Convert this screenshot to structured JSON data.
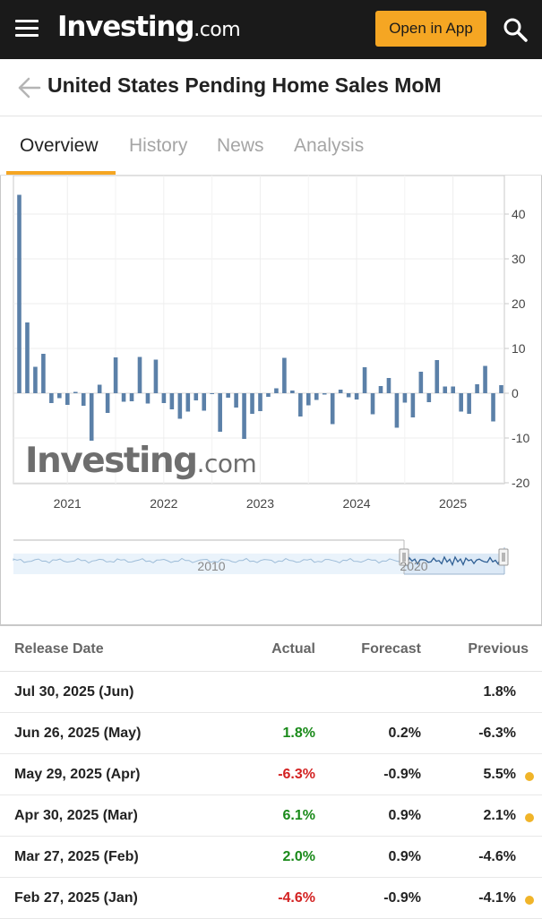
{
  "header": {
    "logo_main": "Investing",
    "logo_suffix": ".com",
    "open_app_label": "Open in App"
  },
  "page": {
    "title": "United States Pending Home Sales MoM"
  },
  "tabs": [
    {
      "label": "Overview",
      "active": true
    },
    {
      "label": "History",
      "active": false
    },
    {
      "label": "News",
      "active": false
    },
    {
      "label": "Analysis",
      "active": false
    }
  ],
  "chart_data": {
    "type": "bar",
    "watermark_main": "Investing",
    "watermark_suffix": ".com",
    "x_tick_labels": [
      "2021",
      "2022",
      "2023",
      "2024",
      "2025"
    ],
    "y_ticks": [
      40,
      30,
      20,
      10,
      0,
      -10,
      -20
    ],
    "y_tick_labels": [
      "40",
      "30",
      "20",
      "10",
      "0",
      "-10",
      "-20"
    ],
    "ylim": [
      -20,
      47
    ],
    "grid": true,
    "y_axis_position": "right",
    "bar_color": "#5b80a8",
    "months": [
      "2020-05",
      "2020-06",
      "2020-07",
      "2020-08",
      "2020-09",
      "2020-10",
      "2020-11",
      "2020-12",
      "2021-01",
      "2021-02",
      "2021-03",
      "2021-04",
      "2021-05",
      "2021-06",
      "2021-07",
      "2021-08",
      "2021-09",
      "2021-10",
      "2021-11",
      "2021-12",
      "2022-01",
      "2022-02",
      "2022-03",
      "2022-04",
      "2022-05",
      "2022-06",
      "2022-07",
      "2022-08",
      "2022-09",
      "2022-10",
      "2022-11",
      "2022-12",
      "2023-01",
      "2023-02",
      "2023-03",
      "2023-04",
      "2023-05",
      "2023-06",
      "2023-07",
      "2023-08",
      "2023-09",
      "2023-10",
      "2023-11",
      "2023-12",
      "2024-01",
      "2024-02",
      "2024-03",
      "2024-04",
      "2024-05",
      "2024-06",
      "2024-07",
      "2024-08",
      "2024-09",
      "2024-10",
      "2024-11",
      "2024-12",
      "2025-01",
      "2025-02",
      "2025-03",
      "2025-04",
      "2025-05"
    ],
    "values": [
      44.3,
      15.8,
      5.9,
      8.8,
      -2.2,
      -1.1,
      -2.6,
      0.3,
      -2.8,
      -10.6,
      1.9,
      -4.4,
      8.0,
      -1.9,
      -1.8,
      8.1,
      -2.3,
      7.5,
      -2.2,
      -3.6,
      -5.7,
      -4.1,
      -1.6,
      -3.9,
      -0.1,
      -8.6,
      -1.0,
      -3.2,
      -10.2,
      -4.6,
      -4.0,
      -0.8,
      1.1,
      7.9,
      0.6,
      -5.2,
      -2.7,
      -1.5,
      -0.3,
      -6.9,
      0.8,
      -0.9,
      -1.4,
      5.8,
      -4.7,
      1.6,
      3.4,
      -7.7,
      -2.1,
      -5.4,
      4.8,
      -2.0,
      7.4,
      1.5,
      1.5,
      -4.1,
      -4.6,
      2.0,
      6.1,
      -6.3,
      1.8
    ],
    "navigator": {
      "labels": [
        "2010",
        "2020"
      ]
    }
  },
  "table": {
    "headers": {
      "release_date": "Release Date",
      "actual": "Actual",
      "forecast": "Forecast",
      "previous": "Previous"
    },
    "rows": [
      {
        "date": "Jul 30, 2025 (Jun)",
        "actual": "",
        "actual_class": "",
        "forecast": "",
        "previous": "1.8%",
        "revised": false
      },
      {
        "date": "Jun 26, 2025 (May)",
        "actual": "1.8%",
        "actual_class": "pos",
        "forecast": "0.2%",
        "previous": "-6.3%",
        "revised": false
      },
      {
        "date": "May 29, 2025 (Apr)",
        "actual": "-6.3%",
        "actual_class": "neg",
        "forecast": "-0.9%",
        "previous": "5.5%",
        "revised": true
      },
      {
        "date": "Apr 30, 2025 (Mar)",
        "actual": "6.1%",
        "actual_class": "pos",
        "forecast": "0.9%",
        "previous": "2.1%",
        "revised": true
      },
      {
        "date": "Mar 27, 2025 (Feb)",
        "actual": "2.0%",
        "actual_class": "pos",
        "forecast": "0.9%",
        "previous": "-4.6%",
        "revised": false
      },
      {
        "date": "Feb 27, 2025 (Jan)",
        "actual": "-4.6%",
        "actual_class": "neg",
        "forecast": "-0.9%",
        "previous": "-4.1%",
        "revised": true
      }
    ]
  },
  "colors": {
    "topbar": "#1a1a1a",
    "accent": "#f5a623",
    "positive": "#1a8a1a",
    "negative": "#d32222",
    "revised_dot": "#f0b429"
  }
}
